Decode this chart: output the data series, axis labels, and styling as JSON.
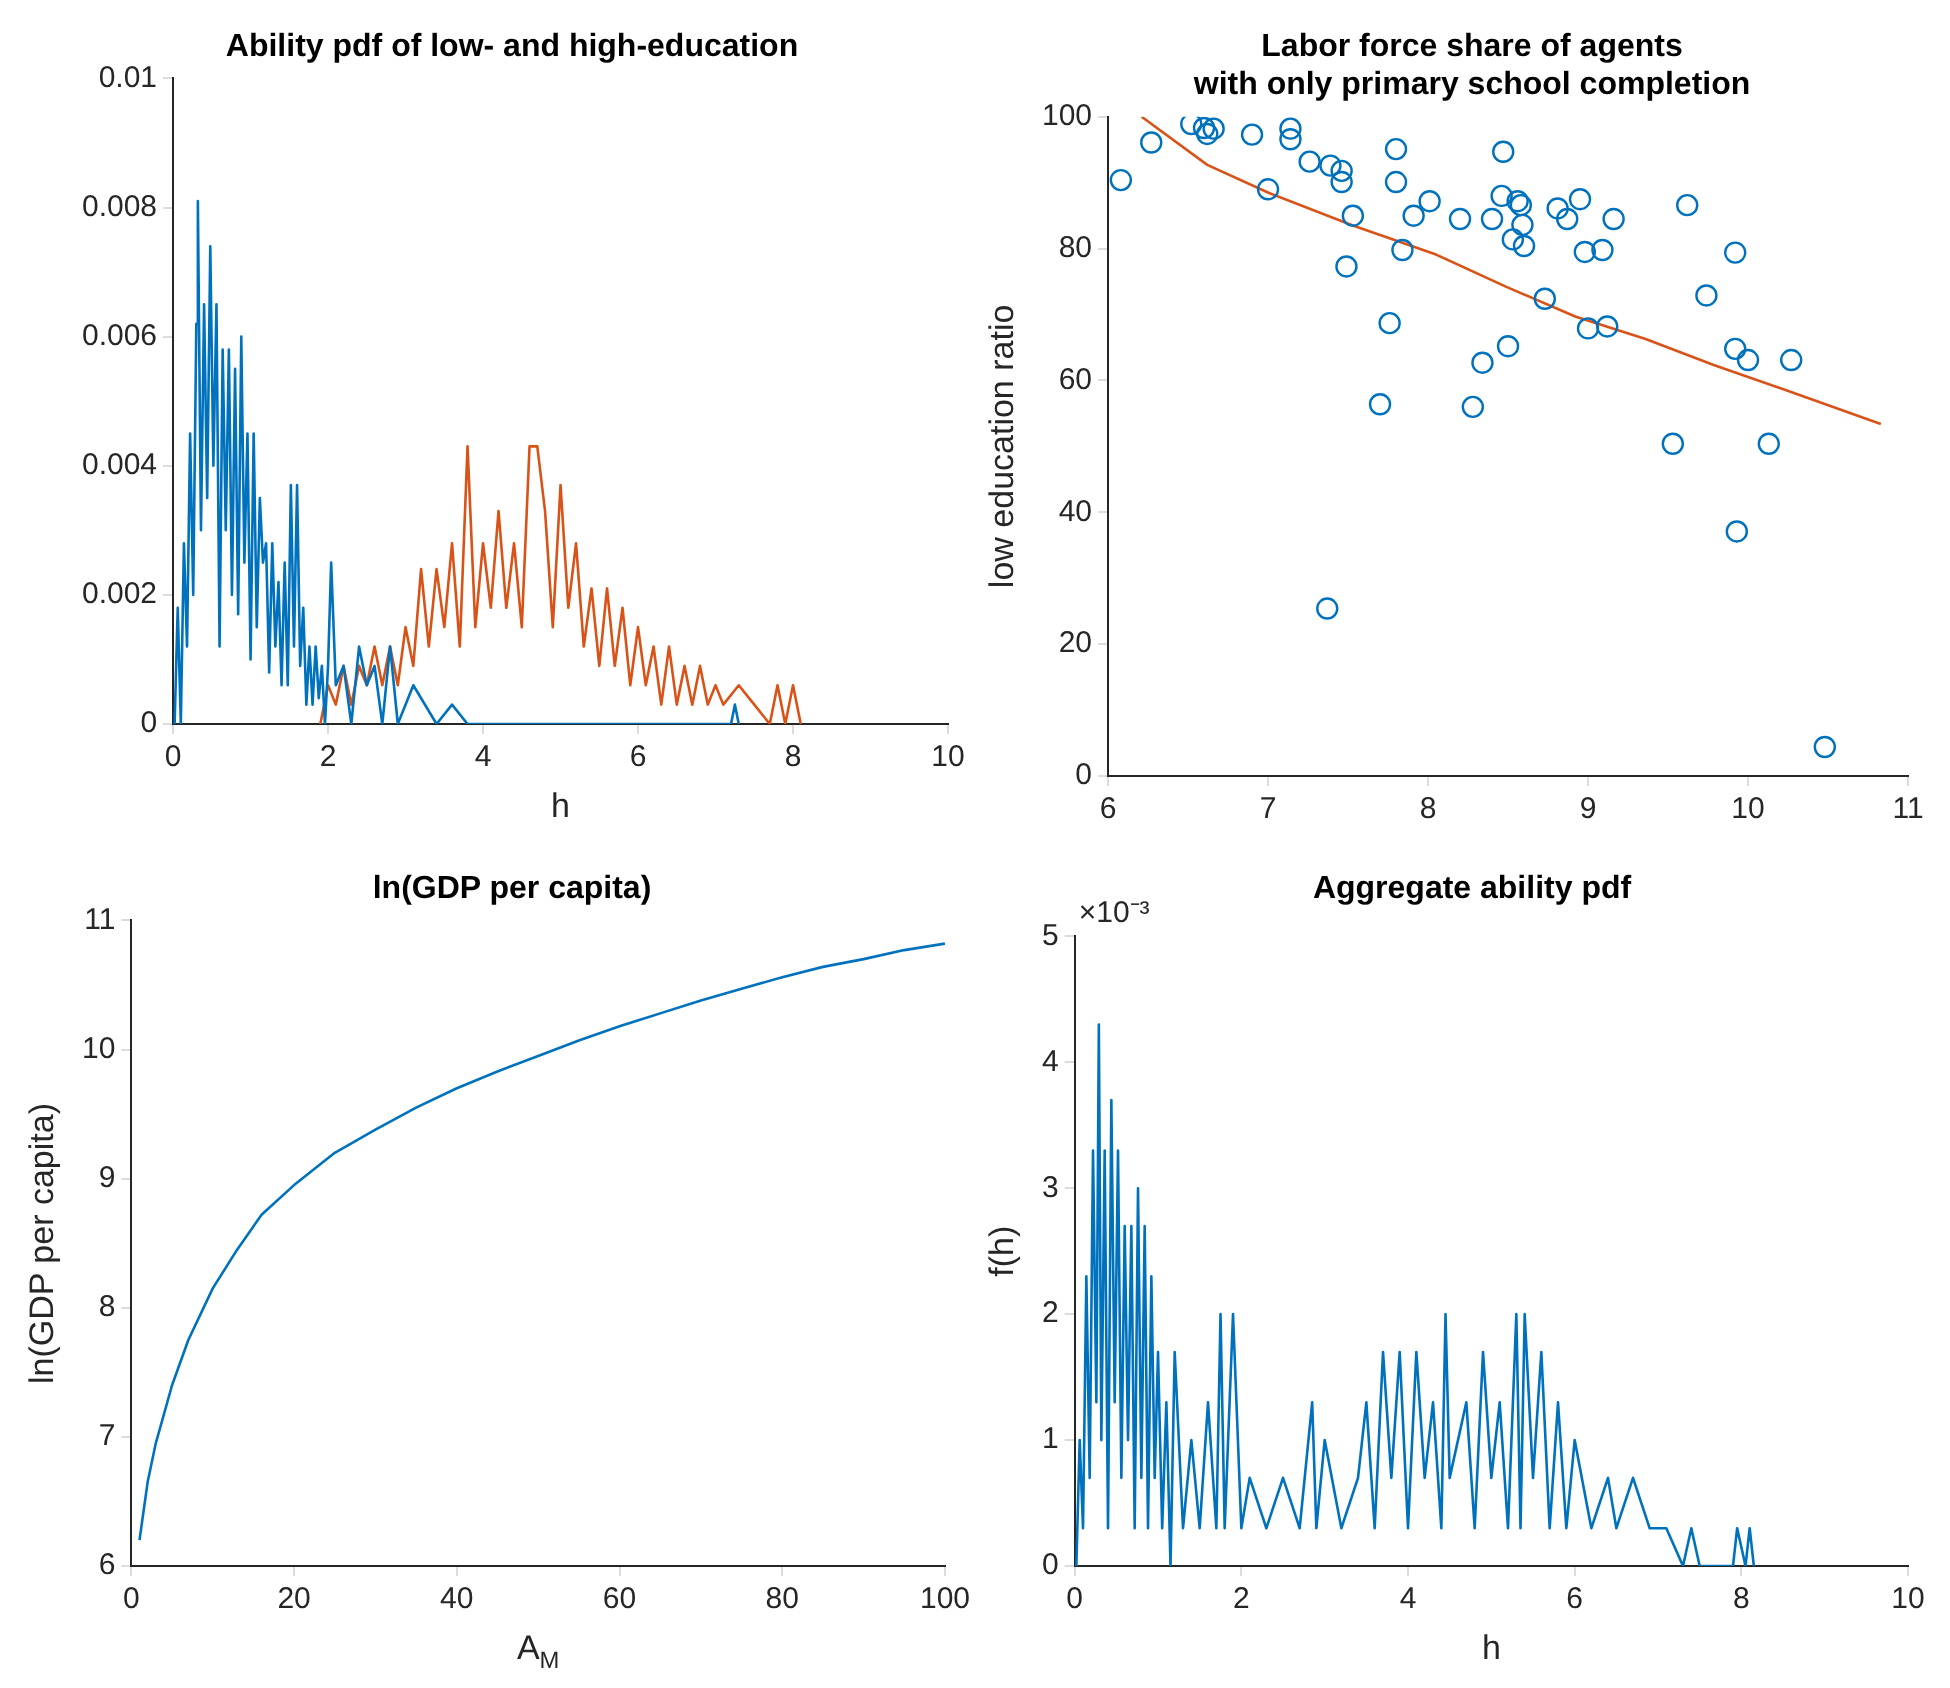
{
  "chart_data": [
    {
      "type": "line",
      "title": "Ability pdf of low- and high-education",
      "xlabel": "h",
      "xlim": [
        0,
        10
      ],
      "xticks": [
        0,
        2,
        4,
        6,
        8,
        10
      ],
      "ylim": [
        0,
        0.01
      ],
      "yticks": [
        0,
        0.002,
        0.004,
        0.006,
        0.008,
        0.01
      ],
      "series": [
        {
          "color": "#0072bd",
          "x": [
            0.02,
            0.06,
            0.1,
            0.14,
            0.18,
            0.22,
            0.26,
            0.3,
            0.32,
            0.36,
            0.4,
            0.44,
            0.48,
            0.52,
            0.56,
            0.6,
            0.64,
            0.68,
            0.72,
            0.76,
            0.8,
            0.84,
            0.88,
            0.92,
            0.96,
            1.0,
            1.04,
            1.08,
            1.12,
            1.16,
            1.2,
            1.24,
            1.28,
            1.32,
            1.36,
            1.4,
            1.44,
            1.48,
            1.52,
            1.56,
            1.6,
            1.64,
            1.68,
            1.72,
            1.76,
            1.8,
            1.84,
            1.88,
            1.92,
            1.96,
            2.0,
            2.04,
            2.1,
            2.2,
            2.3,
            2.4,
            2.5,
            2.6,
            2.7,
            2.8,
            2.9,
            3.1,
            3.4,
            3.6,
            3.8,
            7.2,
            7.25,
            7.3
          ],
          "values": [
            0,
            0.0018,
            0,
            0.0028,
            0.0012,
            0.0045,
            0.002,
            0.0062,
            0.0081,
            0.003,
            0.0065,
            0.0035,
            0.0074,
            0.004,
            0.0065,
            0.0012,
            0.0058,
            0.003,
            0.0058,
            0.002,
            0.0055,
            0.0017,
            0.006,
            0.0025,
            0.0045,
            0.001,
            0.0045,
            0.0015,
            0.0035,
            0.0025,
            0.0028,
            0.0008,
            0.0028,
            0.0012,
            0.0022,
            0.0006,
            0.0025,
            0.0006,
            0.0037,
            0.0012,
            0.0037,
            0.0009,
            0.0018,
            0.0003,
            0.0012,
            0.0003,
            0.0012,
            0.0004,
            0.0009,
            0,
            0.0009,
            0.0025,
            0.0006,
            0.0009,
            0,
            0.0012,
            0.0006,
            0.0009,
            0,
            0.0012,
            0,
            0.0006,
            0,
            0.0003,
            0,
            0,
            0.0003,
            0
          ]
        },
        {
          "color": "#d95319",
          "x": [
            1.9,
            1.95,
            2.0,
            2.1,
            2.2,
            2.3,
            2.4,
            2.5,
            2.6,
            2.7,
            2.8,
            2.9,
            3.0,
            3.1,
            3.2,
            3.3,
            3.4,
            3.5,
            3.6,
            3.7,
            3.8,
            3.9,
            4.0,
            4.1,
            4.2,
            4.3,
            4.4,
            4.5,
            4.6,
            4.7,
            4.8,
            4.9,
            5.0,
            5.1,
            5.2,
            5.3,
            5.4,
            5.5,
            5.6,
            5.7,
            5.8,
            5.9,
            6.0,
            6.1,
            6.2,
            6.3,
            6.4,
            6.5,
            6.6,
            6.7,
            6.8,
            6.9,
            7.0,
            7.1,
            7.3,
            7.5,
            7.7,
            7.8,
            7.9,
            8.0,
            8.1
          ],
          "values": [
            0,
            0.0003,
            0.0006,
            0.0003,
            0.0009,
            0.0003,
            0.0009,
            0.0006,
            0.0012,
            0.0006,
            0.0012,
            0.0006,
            0.0015,
            0.0009,
            0.0024,
            0.0012,
            0.0024,
            0.0015,
            0.0028,
            0.0012,
            0.0043,
            0.0015,
            0.0028,
            0.0018,
            0.0033,
            0.0018,
            0.0028,
            0.0015,
            0.0043,
            0.0043,
            0.0033,
            0.0015,
            0.0037,
            0.0018,
            0.0028,
            0.0012,
            0.0021,
            0.0009,
            0.0021,
            0.0009,
            0.0018,
            0.0006,
            0.0015,
            0.0006,
            0.0012,
            0.0003,
            0.0012,
            0.0003,
            0.0009,
            0.0003,
            0.0009,
            0.0003,
            0.0006,
            0.0003,
            0.0006,
            0.0003,
            0,
            0.0006,
            0,
            0.0006,
            0
          ]
        }
      ]
    },
    {
      "type": "scatter",
      "title": "Labor force share of agents\nwith only primary school completion",
      "ylabel": "low education ratio",
      "xlim": [
        6,
        11
      ],
      "xticks": [
        6,
        7,
        8,
        9,
        10,
        11
      ],
      "ylim": [
        0,
        100
      ],
      "yticks": [
        0,
        20,
        40,
        60,
        80,
        100
      ],
      "series": [
        {
          "marker": "circle",
          "color": "#0072bd",
          "x": [
            6.08,
            6.27,
            6.52,
            6.6,
            6.62,
            6.66,
            6.9,
            7.0,
            7.14,
            7.14,
            7.26,
            7.39,
            7.46,
            7.46,
            7.37,
            7.49,
            7.53,
            7.7,
            7.76,
            7.8,
            7.8,
            7.84,
            7.91,
            8.01,
            8.2,
            8.28,
            8.34,
            8.4,
            8.46,
            8.47,
            8.5,
            8.53,
            8.56,
            8.58,
            8.59,
            8.6,
            8.73,
            8.81,
            8.87,
            8.95,
            8.98,
            9.0,
            9.09,
            9.12,
            9.16,
            9.53,
            9.62,
            9.74,
            9.92,
            9.92,
            9.93,
            10.0,
            10.13,
            10.27,
            10.48
          ],
          "values": [
            90.4,
            96.1,
            98.9,
            98.3,
            97.4,
            98.2,
            97.3,
            89.0,
            98.2,
            96.6,
            93.2,
            92.6,
            91.8,
            90.1,
            25.4,
            77.3,
            85.0,
            56.4,
            68.7,
            95.1,
            90.1,
            79.8,
            85.0,
            87.2,
            84.5,
            56.0,
            62.7,
            84.5,
            88.0,
            94.7,
            65.2,
            81.4,
            87.2,
            86.6,
            83.6,
            80.4,
            72.4,
            86.1,
            84.5,
            87.5,
            79.5,
            67.9,
            79.8,
            68.2,
            84.5,
            50.4,
            86.6,
            72.9,
            79.4,
            64.8,
            37.1,
            63.1,
            50.4,
            63.1,
            4.4
          ]
        },
        {
          "type": "line",
          "color": "#d95319",
          "x": [
            6.21,
            6.62,
            7.01,
            7.53,
            8.05,
            8.49,
            8.92,
            9.36,
            9.79,
            10.23,
            10.83
          ],
          "values": [
            100,
            92.7,
            88.4,
            83.5,
            79.1,
            74.2,
            69.7,
            66.3,
            62.3,
            58.6,
            53.4
          ]
        }
      ]
    },
    {
      "type": "line",
      "title": "ln(GDP per capita)",
      "xlabel": "A$_{M}$",
      "ylabel": "ln(GDP per capita)",
      "xlim": [
        0,
        100
      ],
      "xticks": [
        0,
        20,
        40,
        60,
        80,
        100
      ],
      "ylim": [
        6,
        11
      ],
      "yticks": [
        6,
        7,
        8,
        9,
        10,
        11
      ],
      "series": [
        {
          "color": "#0072bd",
          "x": [
            1,
            2,
            3,
            5,
            7,
            10,
            13,
            16,
            20,
            25,
            30,
            35,
            40,
            45,
            50,
            55,
            60,
            65,
            70,
            75,
            80,
            85,
            90,
            95,
            100
          ],
          "values": [
            6.2,
            6.65,
            6.95,
            7.4,
            7.75,
            8.15,
            8.45,
            8.72,
            8.95,
            9.2,
            9.38,
            9.55,
            9.7,
            9.83,
            9.95,
            10.07,
            10.18,
            10.28,
            10.38,
            10.47,
            10.56,
            10.64,
            10.7,
            10.77,
            10.82
          ]
        }
      ]
    },
    {
      "type": "line",
      "title": "Aggregate ability pdf",
      "xlabel": "h",
      "ylabel": "f(h)",
      "annotations": [
        "×10⁻³"
      ],
      "xlim": [
        0,
        10
      ],
      "xticks": [
        0,
        2,
        4,
        6,
        8,
        10
      ],
      "ylim": [
        0,
        5
      ],
      "yticks": [
        0,
        1,
        2,
        3,
        4,
        5
      ],
      "series": [
        {
          "color": "#0072bd",
          "x": [
            0.02,
            0.06,
            0.1,
            0.14,
            0.18,
            0.22,
            0.26,
            0.29,
            0.32,
            0.36,
            0.4,
            0.44,
            0.48,
            0.52,
            0.56,
            0.6,
            0.64,
            0.68,
            0.72,
            0.76,
            0.8,
            0.84,
            0.88,
            0.92,
            0.96,
            1.0,
            1.05,
            1.1,
            1.15,
            1.2,
            1.3,
            1.4,
            1.5,
            1.6,
            1.7,
            1.75,
            1.8,
            1.9,
            2.0,
            2.1,
            2.3,
            2.5,
            2.7,
            2.85,
            2.9,
            3.0,
            3.2,
            3.4,
            3.5,
            3.6,
            3.7,
            3.8,
            3.9,
            4.0,
            4.1,
            4.2,
            4.3,
            4.4,
            4.45,
            4.5,
            4.7,
            4.8,
            4.9,
            5.0,
            5.1,
            5.2,
            5.3,
            5.35,
            5.4,
            5.5,
            5.6,
            5.7,
            5.8,
            5.9,
            6.0,
            6.2,
            6.4,
            6.5,
            6.7,
            6.9,
            7.1,
            7.3,
            7.4,
            7.5,
            7.9,
            7.95,
            8.05,
            8.1,
            8.15
          ],
          "values": [
            0,
            1,
            0.3,
            2.3,
            0.7,
            3.3,
            1.3,
            4.3,
            1,
            3.3,
            0.3,
            3.7,
            1.3,
            3.3,
            0.7,
            2.7,
            1,
            2.7,
            0.3,
            3,
            0.7,
            2.7,
            0.3,
            2.3,
            0.7,
            1.7,
            0.3,
            1.3,
            0,
            1.7,
            0.3,
            1,
            0.3,
            1.3,
            0.3,
            2,
            0.3,
            2,
            0.3,
            0.7,
            0.3,
            0.7,
            0.3,
            1.3,
            0.3,
            1,
            0.3,
            0.7,
            1.3,
            0.3,
            1.7,
            0.7,
            1.7,
            0.3,
            1.7,
            0.7,
            1.3,
            0.3,
            2,
            0.7,
            1.3,
            0.3,
            1.7,
            0.7,
            1.3,
            0.3,
            2,
            0.3,
            2,
            0.7,
            1.7,
            0.3,
            1.3,
            0.3,
            1,
            0.3,
            0.7,
            0.3,
            0.7,
            0.3,
            0.3,
            0,
            0.3,
            0,
            0,
            0.3,
            0,
            0.3,
            0
          ]
        }
      ]
    }
  ]
}
